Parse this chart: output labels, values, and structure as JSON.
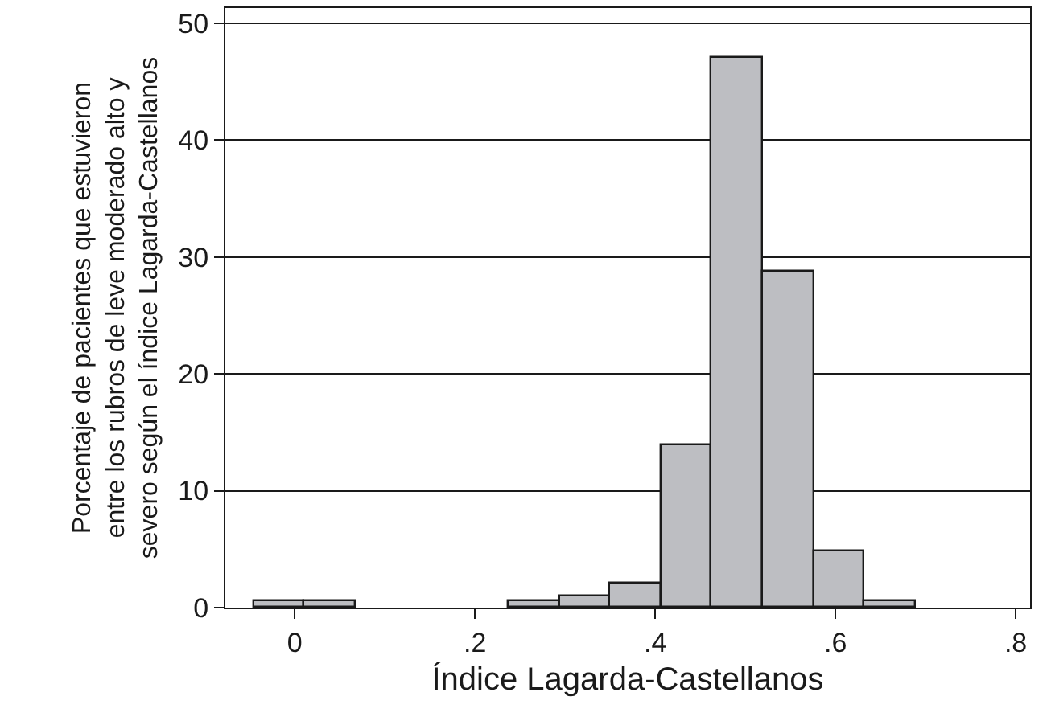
{
  "chart_data": {
    "type": "histogram",
    "xlabel": "Índice Lagarda-Castellanos",
    "ylabel": "Porcentaje de pacientes que estuvieron\nentre los rubros de leve moderado alto y\nsevero según el índice Lagarda-Castellanos",
    "bins": [
      -0.045,
      0.011,
      0.068,
      0.238,
      0.294,
      0.35,
      0.407,
      0.463,
      0.52,
      0.576,
      0.632,
      0.689
    ],
    "values": [
      0.5,
      0.5,
      0,
      0.5,
      1,
      2.1,
      13.9,
      47.1,
      28.8,
      4.8,
      0.5
    ],
    "color": "#bdbec2",
    "xlim": [
      -0.077,
      0.816
    ],
    "xticks": [
      0,
      {
        "value": 0.2,
        "label": ".2"
      },
      {
        "value": 0.4,
        "label": ".4"
      },
      {
        "value": 0.6,
        "label": ".6"
      },
      {
        "value": 0.8,
        "label": ".8"
      }
    ],
    "ylim": [
      0,
      51.3
    ],
    "yticks": [
      0,
      10,
      20,
      30,
      40,
      50
    ],
    "grid": "y"
  }
}
